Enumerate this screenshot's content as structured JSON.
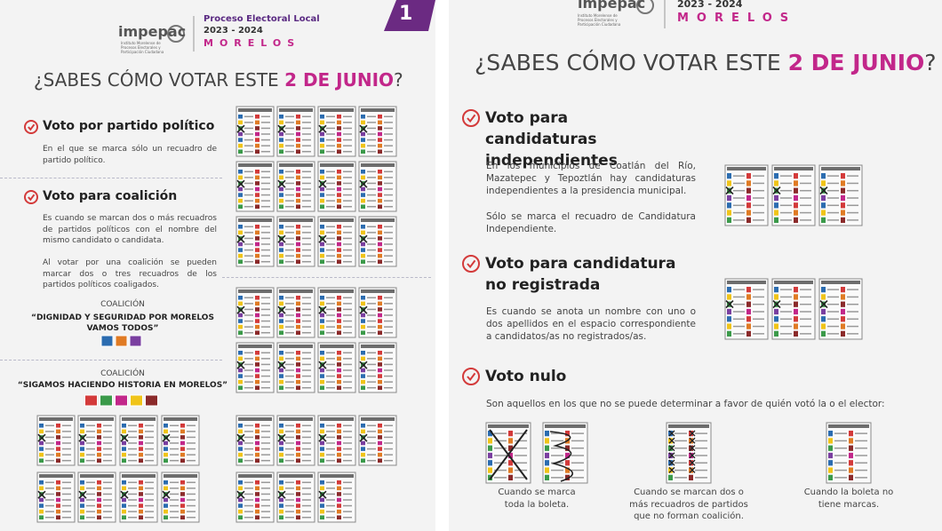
{
  "left": {
    "header": {
      "logo": "impepac",
      "logo_sub": "Instituto Morelense de Procesos Electorales y Participación Ciudadana",
      "line1": "Proceso Electoral Local",
      "line2": "2023 - 2024",
      "line3": "MORELOS"
    },
    "page_number": "1",
    "title": {
      "pre": "¿SABES CÓMO VOTAR ESTE ",
      "highlight": "2 DE JUNIO",
      "post": "?"
    },
    "sections": [
      {
        "heading": "Voto por partido político",
        "paragraphs": [
          "En el que se marca sólo un recuadro de partido político."
        ]
      },
      {
        "heading": "Voto para coalición",
        "paragraphs": [
          "Es cuando se marcan dos o más recuadros de partidos políticos con el nombre del mismo candidato o candidata.",
          "Al votar por una coalición se pueden marcar dos o tres recuadros de los partidos políticos coaligados."
        ]
      }
    ],
    "coalitions": [
      {
        "label": "COALICIÓN",
        "name": "“DIGNIDAD Y SEGURIDAD POR MORELOS VAMOS TODOS”"
      },
      {
        "label": "COALICIÓN",
        "name": "“SIGAMOS HACIENDO HISTORIA EN MORELOS”"
      }
    ]
  },
  "right": {
    "header": {
      "logo": "impepac",
      "logo_sub": "Instituto Morelense de Procesos Electorales y Participación Ciudadana",
      "line2": "2023 - 2024",
      "line3": "MORELOS"
    },
    "title": {
      "pre": "¿SABES CÓMO VOTAR ESTE ",
      "highlight": "2 DE JUNIO",
      "post": "?"
    },
    "sections": [
      {
        "heading": "Voto para candidaturas independientes",
        "paragraphs": [
          "En los municipios de Coatlán del Río, Mazatepec y Tepoztlán hay candidaturas independientes a la presidencia municipal.",
          "Sólo se marca el recuadro de Candidatura Independiente."
        ]
      },
      {
        "heading": "Voto para candidatura no registrada",
        "paragraphs": [
          "Es cuando se anota un nombre con uno o dos apellidos en el espacio correspondiente a candidatos/as no registrados/as."
        ]
      },
      {
        "heading": "Voto nulo",
        "paragraphs": [
          "Son aquellos en los que no se puede determinar a favor de quién votó la o el elector:"
        ]
      }
    ],
    "null_cases": [
      "Cuando se marca toda la boleta.",
      "Cuando se marcan dos o más recuadros de partidos que no forman coalición.",
      "Cuando la boleta no tiene marcas."
    ]
  }
}
